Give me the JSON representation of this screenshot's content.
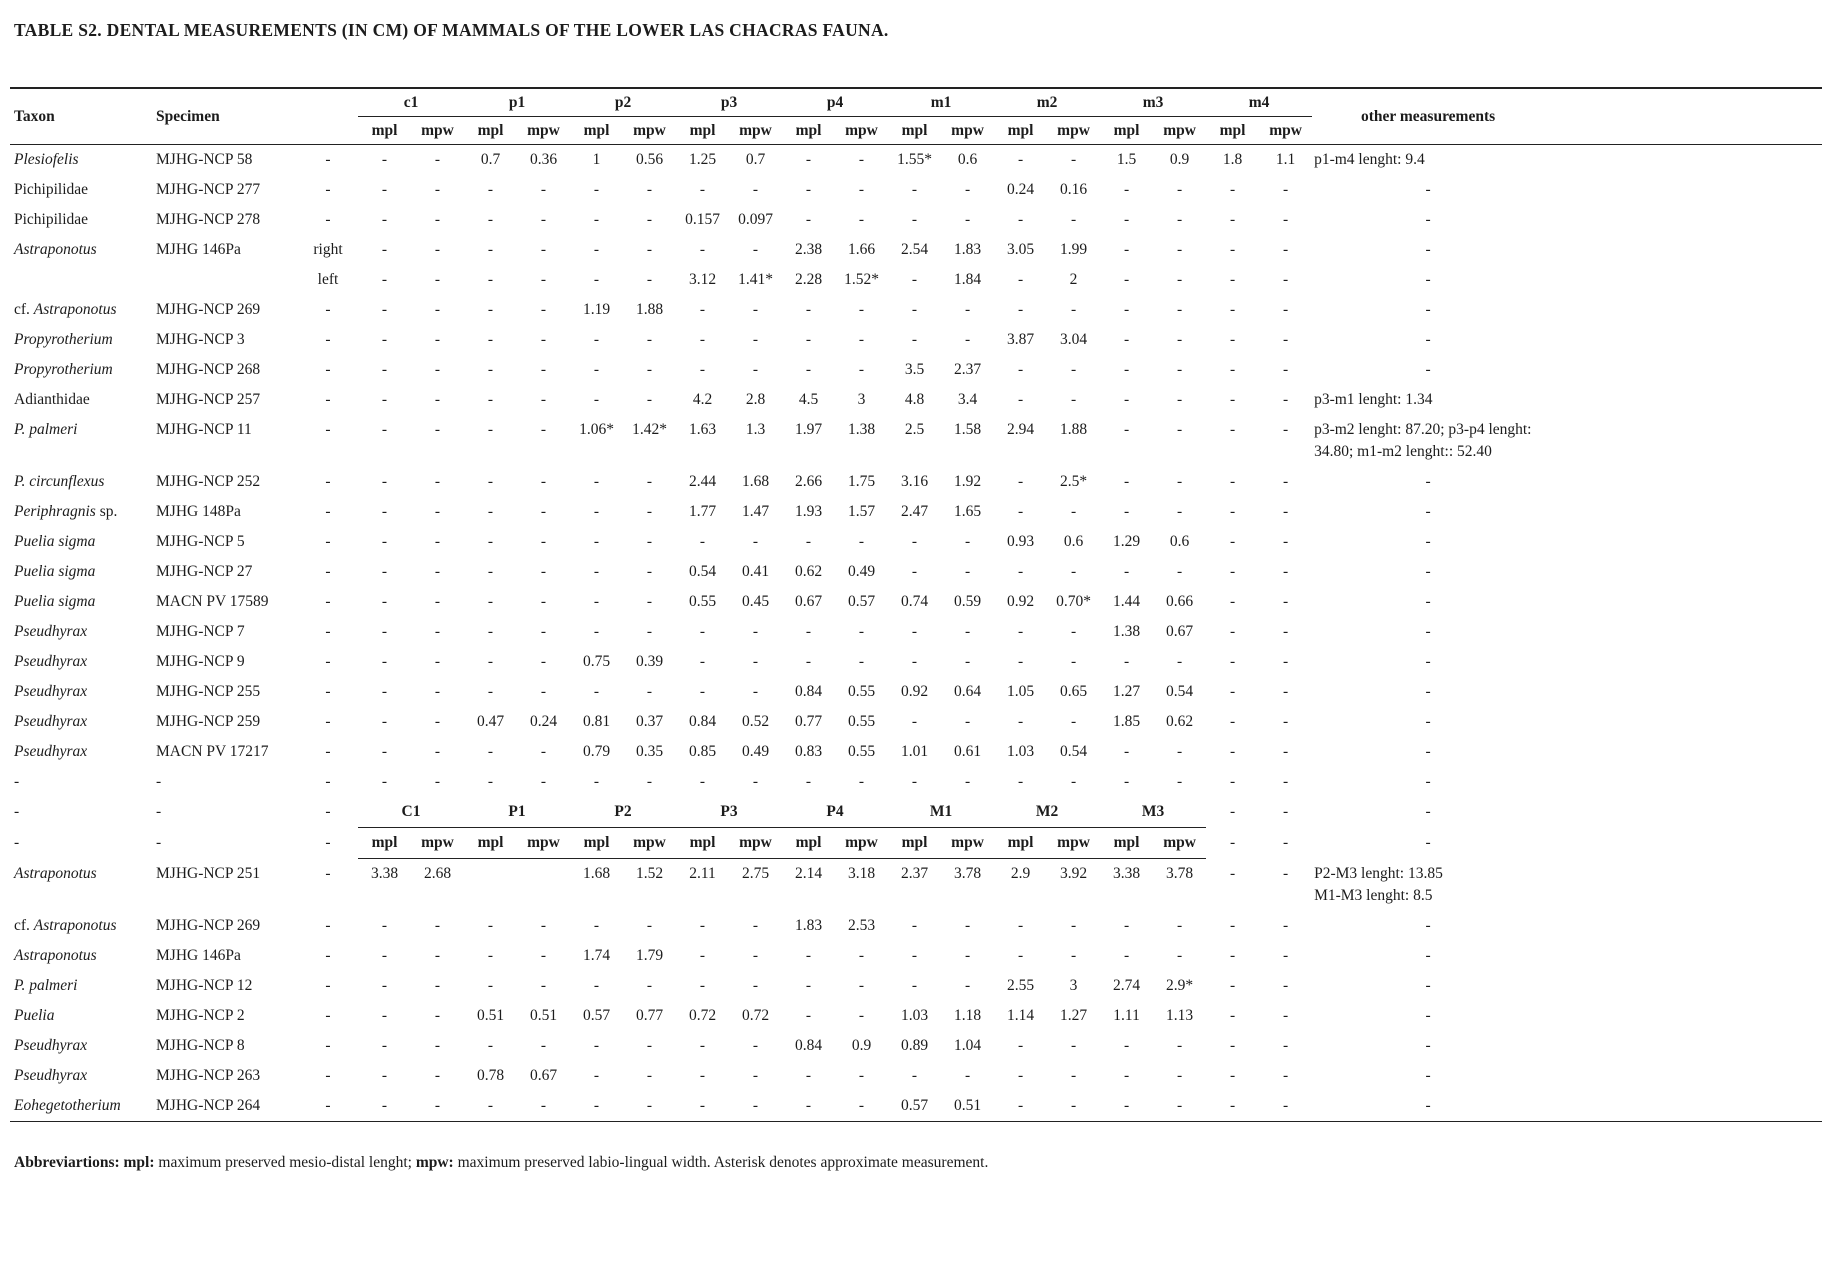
{
  "title": "TABLE S2. DENTAL MEASUREMENTS (IN CM) OF MAMMALS OF THE LOWER LAS CHACRAS FAUNA.",
  "table": {
    "header": {
      "taxon": "Taxon",
      "specimen": "Specimen",
      "groups": [
        "c1",
        "p1",
        "p2",
        "p3",
        "p4",
        "m1",
        "m2",
        "m3",
        "m4"
      ],
      "mpl": "mpl",
      "mpw": "mpw",
      "other": "other measurements"
    },
    "rows": [
      {
        "taxon": {
          "it": "Plesiofelis"
        },
        "specimen": "MJHG-NCP 58",
        "side": "-",
        "v": [
          "-",
          "-",
          "0.7",
          "0.36",
          "1",
          "0.56",
          "1.25",
          "0.7",
          "-",
          "-",
          "1.55*",
          "0.6",
          "-",
          "-",
          "1.5",
          "0.9",
          "1.8",
          "1.1"
        ],
        "other": "p1-m4 lenght: 9.4"
      },
      {
        "taxon": {
          "pre": "Pichipilidae"
        },
        "specimen": "MJHG-NCP 277",
        "side": "-",
        "v": [
          "-",
          "-",
          "-",
          "-",
          "-",
          "-",
          "-",
          "-",
          "-",
          "-",
          "-",
          "-",
          "0.24",
          "0.16",
          "-",
          "-",
          "-",
          "-"
        ],
        "other": "-"
      },
      {
        "taxon": {
          "pre": "Pichipilidae"
        },
        "specimen": "MJHG-NCP 278",
        "side": "-",
        "v": [
          "-",
          "-",
          "-",
          "-",
          "-",
          "-",
          "0.157",
          "0.097",
          "-",
          "-",
          "-",
          "-",
          "-",
          "-",
          "-",
          "-",
          "-",
          "-"
        ],
        "other": "-"
      },
      {
        "taxon": {
          "it": "Astraponotus"
        },
        "specimen": "MJHG 146Pa",
        "side": "right",
        "v": [
          "-",
          "-",
          "-",
          "-",
          "-",
          "-",
          "-",
          "-",
          "2.38",
          "1.66",
          "2.54",
          "1.83",
          "3.05",
          "1.99",
          "-",
          "-",
          "-",
          "-"
        ],
        "other": "-"
      },
      {
        "taxon": {},
        "specimen": "",
        "side": "left",
        "v": [
          "-",
          "-",
          "-",
          "-",
          "-",
          "-",
          "3.12",
          "1.41*",
          "2.28",
          "1.52*",
          "-",
          "1.84",
          "-",
          "2",
          "-",
          "-",
          "-",
          "-"
        ],
        "other": "-"
      },
      {
        "taxon": {
          "pre": "cf. ",
          "it": "Astraponotus"
        },
        "specimen": "MJHG-NCP 269",
        "side": "-",
        "v": [
          "-",
          "-",
          "-",
          "-",
          "1.19",
          "1.88",
          "-",
          "-",
          "-",
          "-",
          "-",
          "-",
          "-",
          "-",
          "-",
          "-",
          "-",
          "-"
        ],
        "other": "-"
      },
      {
        "taxon": {
          "it": "Propyrotherium"
        },
        "specimen": "MJHG-NCP 3",
        "side": "-",
        "v": [
          "-",
          "-",
          "-",
          "-",
          "-",
          "-",
          "-",
          "-",
          "-",
          "-",
          "-",
          "-",
          "3.87",
          "3.04",
          "-",
          "-",
          "-",
          "-"
        ],
        "other": "-"
      },
      {
        "taxon": {
          "it": "Propyrotherium"
        },
        "specimen": "MJHG-NCP 268",
        "side": "-",
        "v": [
          "-",
          "-",
          "-",
          "-",
          "-",
          "-",
          "-",
          "-",
          "-",
          "-",
          "3.5",
          "2.37",
          "-",
          "-",
          "-",
          "-",
          "-",
          "-"
        ],
        "other": "-"
      },
      {
        "taxon": {
          "pre": "Adianthidae"
        },
        "specimen": "MJHG-NCP 257",
        "side": "-",
        "v": [
          "-",
          "-",
          "-",
          "-",
          "-",
          "-",
          "4.2",
          "2.8",
          "4.5",
          "3",
          "4.8",
          "3.4",
          "-",
          "-",
          "-",
          "-",
          "-",
          "-"
        ],
        "other": "p3-m1 lenght: 1.34"
      },
      {
        "taxon": {
          "it": "P. palmeri"
        },
        "specimen": "MJHG-NCP 11",
        "side": "-",
        "v": [
          "-",
          "-",
          "-",
          "-",
          "1.06*",
          "1.42*",
          "1.63",
          "1.3",
          "1.97",
          "1.38",
          "2.5",
          "1.58",
          "2.94",
          "1.88",
          "-",
          "-",
          "-",
          "-"
        ],
        "other": "p3-m2 lenght: 87.20; p3-p4 lenght: 34.80; m1-m2 lenght:: 52.40"
      },
      {
        "taxon": {
          "it": "P. circunflexus"
        },
        "specimen": "MJHG-NCP 252",
        "side": "-",
        "v": [
          "-",
          "-",
          "-",
          "-",
          "-",
          "-",
          "2.44",
          "1.68",
          "2.66",
          "1.75",
          "3.16",
          "1.92",
          "-",
          "2.5*",
          "-",
          "-",
          "-",
          "-"
        ],
        "other": "-"
      },
      {
        "taxon": {
          "it": "Periphragnis",
          "suf": " sp."
        },
        "specimen": "MJHG 148Pa",
        "side": "-",
        "v": [
          "-",
          "-",
          "-",
          "-",
          "-",
          "-",
          "1.77",
          "1.47",
          "1.93",
          "1.57",
          "2.47",
          "1.65",
          "-",
          "-",
          "-",
          "-",
          "-",
          "-"
        ],
        "other": "-"
      },
      {
        "taxon": {
          "it": "Puelia sigma"
        },
        "specimen": "MJHG-NCP 5",
        "side": "-",
        "v": [
          "-",
          "-",
          "-",
          "-",
          "-",
          "-",
          "-",
          "-",
          "-",
          "-",
          "-",
          "-",
          "0.93",
          "0.6",
          "1.29",
          "0.6",
          "-",
          "-"
        ],
        "other": "-"
      },
      {
        "taxon": {
          "it": "Puelia sigma"
        },
        "specimen": "MJHG-NCP 27",
        "side": "-",
        "v": [
          "-",
          "-",
          "-",
          "-",
          "-",
          "-",
          "0.54",
          "0.41",
          "0.62",
          "0.49",
          "-",
          "-",
          "-",
          "-",
          "-",
          "-",
          "-",
          "-"
        ],
        "other": "-"
      },
      {
        "taxon": {
          "it": "Puelia sigma"
        },
        "specimen": "MACN PV 17589",
        "side": "-",
        "v": [
          "-",
          "-",
          "-",
          "-",
          "-",
          "-",
          "0.55",
          "0.45",
          "0.67",
          "0.57",
          "0.74",
          "0.59",
          "0.92",
          "0.70*",
          "1.44",
          "0.66",
          "-",
          "-"
        ],
        "other": "-"
      },
      {
        "taxon": {
          "it": "Pseudhyrax"
        },
        "specimen": "MJHG-NCP 7",
        "side": "-",
        "v": [
          "-",
          "-",
          "-",
          "-",
          "-",
          "-",
          "-",
          "-",
          "-",
          "-",
          "-",
          "-",
          "-",
          "-",
          "1.38",
          "0.67",
          "-",
          "-"
        ],
        "other": "-"
      },
      {
        "taxon": {
          "it": "Pseudhyrax"
        },
        "specimen": "MJHG-NCP 9",
        "side": "-",
        "v": [
          "-",
          "-",
          "-",
          "-",
          "0.75",
          "0.39",
          "-",
          "-",
          "-",
          "-",
          "-",
          "-",
          "-",
          "-",
          "-",
          "-",
          "-",
          "-"
        ],
        "other": "-"
      },
      {
        "taxon": {
          "it": "Pseudhyrax"
        },
        "specimen": "MJHG-NCP 255",
        "side": "-",
        "v": [
          "-",
          "-",
          "-",
          "-",
          "-",
          "-",
          "-",
          "-",
          "0.84",
          "0.55",
          "0.92",
          "0.64",
          "1.05",
          "0.65",
          "1.27",
          "0.54",
          "-",
          "-"
        ],
        "other": "-"
      },
      {
        "taxon": {
          "it": "Pseudhyrax"
        },
        "specimen": "MJHG-NCP 259",
        "side": "-",
        "v": [
          "-",
          "-",
          "0.47",
          "0.24",
          "0.81",
          "0.37",
          "0.84",
          "0.52",
          "0.77",
          "0.55",
          "-",
          "-",
          "-",
          "-",
          "1.85",
          "0.62",
          "-",
          "-"
        ],
        "other": "-"
      },
      {
        "taxon": {
          "it": "Pseudhyrax"
        },
        "specimen": "MACN PV 17217",
        "side": "-",
        "v": [
          "-",
          "-",
          "-",
          "-",
          "0.79",
          "0.35",
          "0.85",
          "0.49",
          "0.83",
          "0.55",
          "1.01",
          "0.61",
          "1.03",
          "0.54",
          "-",
          "-",
          "-",
          "-"
        ],
        "other": "-"
      },
      {
        "taxon": {
          "pre": "-"
        },
        "specimen": "-",
        "side": "-",
        "v": [
          "-",
          "-",
          "-",
          "-",
          "-",
          "-",
          "-",
          "-",
          "-",
          "-",
          "-",
          "-",
          "-",
          "-",
          "-",
          "-",
          "-",
          "-"
        ],
        "other": "-"
      },
      {
        "type": "groups",
        "taxon": "-",
        "specimen": "-",
        "side": "-",
        "groups": [
          "C1",
          "P1",
          "P2",
          "P3",
          "P4",
          "M1",
          "M2",
          "M3"
        ],
        "tail": [
          "-",
          "-"
        ],
        "other": "-"
      },
      {
        "type": "sub",
        "taxon": "-",
        "specimen": "-",
        "side": "-",
        "tail": [
          "-",
          "-"
        ],
        "other": "-"
      },
      {
        "taxon": {
          "it": "Astraponotus"
        },
        "specimen": "MJHG-NCP 251",
        "side": "-",
        "v": [
          "3.38",
          "2.68",
          "",
          "",
          "1.68",
          "1.52",
          "2.11",
          "2.75",
          "2.14",
          "3.18",
          "2.37",
          "3.78",
          "2.9",
          "3.92",
          "3.38",
          "3.78",
          "-",
          "-"
        ],
        "other": "P2-M3 lenght: 13.85\nM1-M3 lenght: 8.5"
      },
      {
        "taxon": {
          "pre": "cf. ",
          "it": "Astraponotus"
        },
        "specimen": "MJHG-NCP 269",
        "side": "-",
        "v": [
          "-",
          "-",
          "-",
          "-",
          "-",
          "-",
          "-",
          "-",
          "1.83",
          "2.53",
          "-",
          "-",
          "-",
          "-",
          "-",
          "-",
          "-",
          "-"
        ],
        "other": "-"
      },
      {
        "taxon": {
          "it": "Astraponotus"
        },
        "specimen": "MJHG 146Pa",
        "side": "-",
        "v": [
          "-",
          "-",
          "-",
          "-",
          "1.74",
          "1.79",
          "-",
          "-",
          "-",
          "-",
          "-",
          "-",
          "-",
          "-",
          "-",
          "-",
          "-",
          "-"
        ],
        "other": "-"
      },
      {
        "taxon": {
          "it": "P. palmeri"
        },
        "specimen": "MJHG-NCP 12",
        "side": "-",
        "v": [
          "-",
          "-",
          "-",
          "-",
          "-",
          "-",
          "-",
          "-",
          "-",
          "-",
          "-",
          "-",
          "2.55",
          "3",
          "2.74",
          "2.9*",
          "-",
          "-"
        ],
        "other": "-"
      },
      {
        "taxon": {
          "it": "Puelia"
        },
        "specimen": "MJHG-NCP 2",
        "side": "-",
        "v": [
          "-",
          "-",
          "0.51",
          "0.51",
          "0.57",
          "0.77",
          "0.72",
          "0.72",
          "-",
          "-",
          "1.03",
          "1.18",
          "1.14",
          "1.27",
          "1.11",
          "1.13",
          "-",
          "-"
        ],
        "other": "-"
      },
      {
        "taxon": {
          "it": "Pseudhyrax"
        },
        "specimen": "MJHG-NCP 8",
        "side": "-",
        "v": [
          "-",
          "-",
          "-",
          "-",
          "-",
          "-",
          "-",
          "-",
          "0.84",
          "0.9",
          "0.89",
          "1.04",
          "-",
          "-",
          "-",
          "-",
          "-",
          "-"
        ],
        "other": "-"
      },
      {
        "taxon": {
          "it": "Pseudhyrax"
        },
        "specimen": "MJHG-NCP 263",
        "side": "-",
        "v": [
          "-",
          "-",
          "0.78",
          "0.67",
          "-",
          "-",
          "-",
          "-",
          "-",
          "-",
          "-",
          "-",
          "-",
          "-",
          "-",
          "-",
          "-",
          "-"
        ],
        "other": "-"
      },
      {
        "taxon": {
          "it": "Eohegetotherium"
        },
        "specimen": "MJHG-NCP 264",
        "side": "-",
        "v": [
          "-",
          "-",
          "-",
          "-",
          "-",
          "-",
          "-",
          "-",
          "-",
          "-",
          "0.57",
          "0.51",
          "-",
          "-",
          "-",
          "-",
          "-",
          "-"
        ],
        "other": "-"
      }
    ]
  },
  "footer": {
    "label": "Abbreviartions:",
    "mpl_label": "mpl:",
    "mpl_text": "maximum preserved mesio-distal lenght;",
    "mpw_label": "mpw:",
    "mpw_text": "maximum preserved labio-lingual width. Asterisk denotes approximate measurement."
  }
}
